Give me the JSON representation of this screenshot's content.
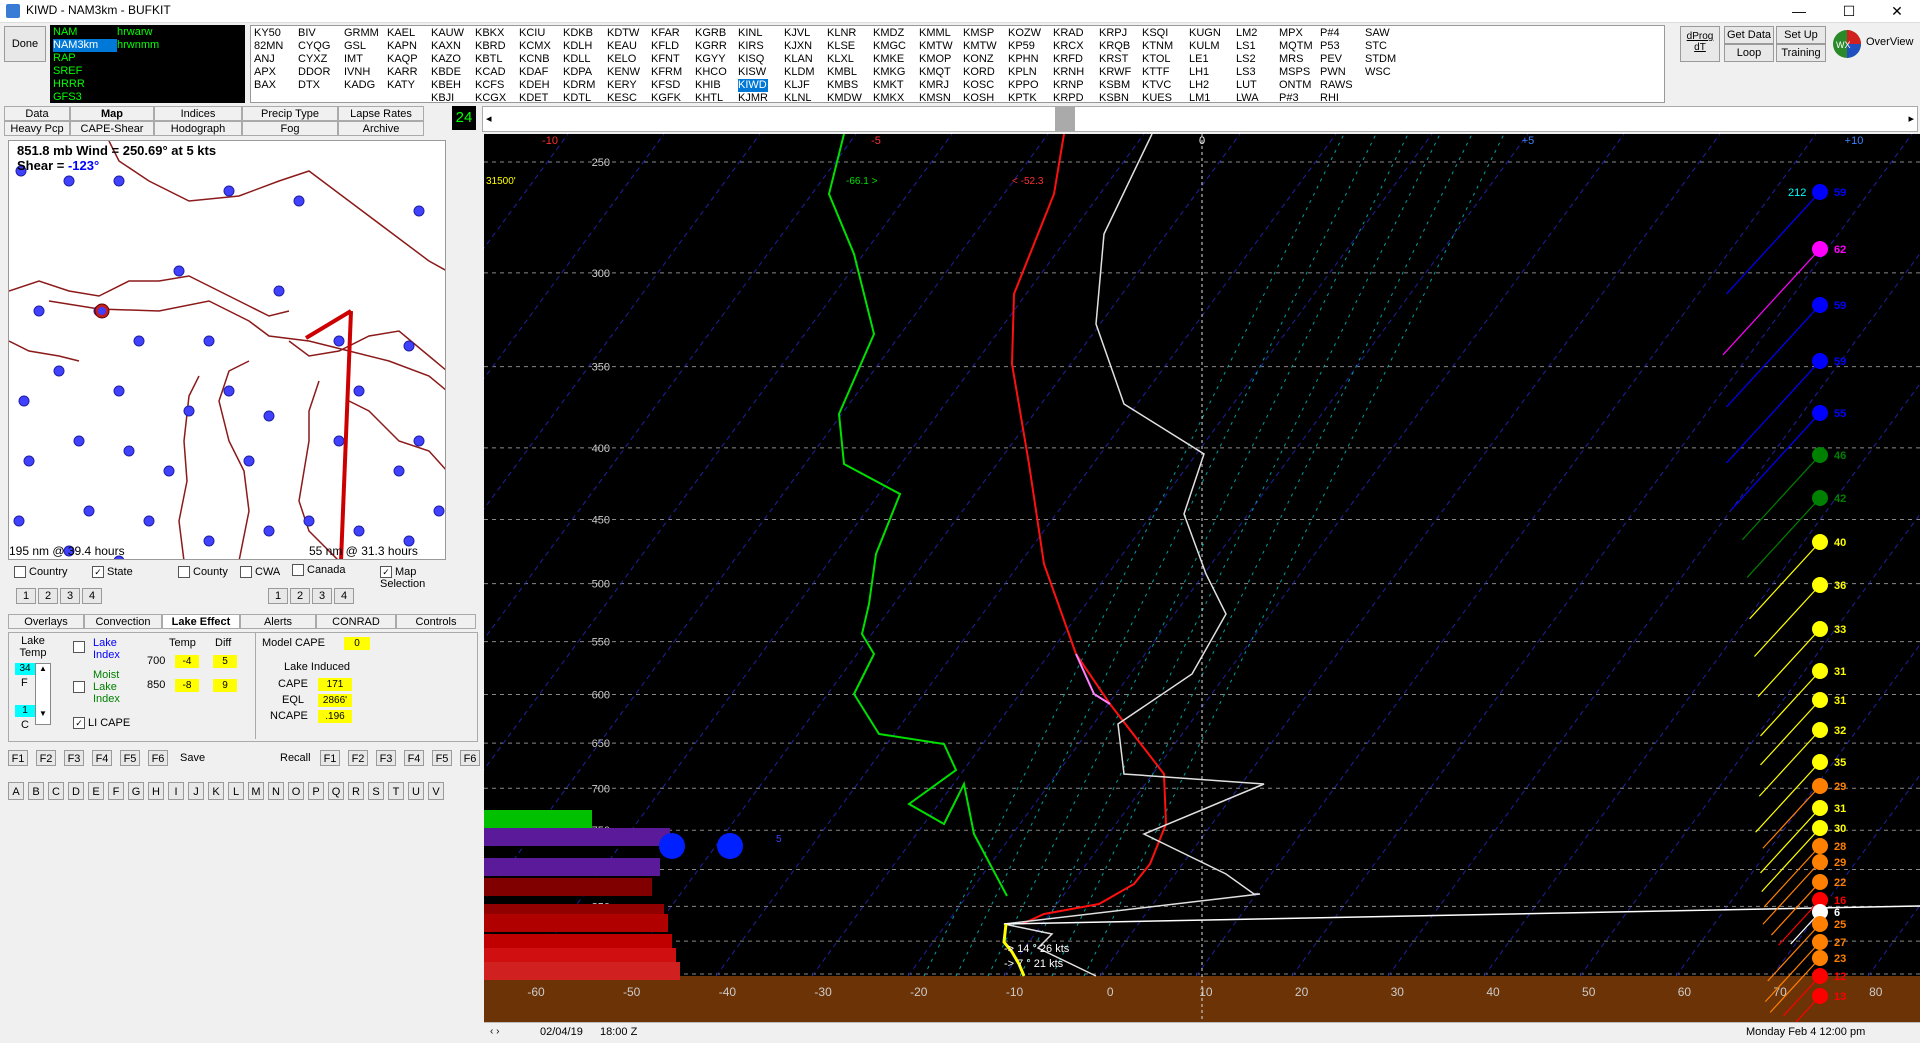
{
  "window": {
    "title": "KIWD - NAM3km - BUFKIT",
    "controls": [
      "—",
      "☐",
      "✕"
    ]
  },
  "toolbar": {
    "done": "Done",
    "hours": "24",
    "dprog": "dProg dT",
    "get_data": "Get Data",
    "loop": "Loop",
    "setup": "Set Up",
    "training": "Training",
    "overview": "OverView"
  },
  "models": [
    {
      "name": "NAM",
      "file": "hrwarw",
      "color": "#00ff00",
      "selected": false
    },
    {
      "name": "NAM3km",
      "file": "hrwnmm",
      "color": "#ffffff",
      "selected": true
    },
    {
      "name": "RAP",
      "file": "",
      "color": "#00ff00",
      "selected": false
    },
    {
      "name": "SREF",
      "file": "",
      "color": "#00ff00",
      "selected": false
    },
    {
      "name": "HRRR",
      "file": "",
      "color": "#00ff00",
      "selected": false
    },
    {
      "name": "GFS3",
      "file": "",
      "color": "#00ff00",
      "selected": false
    }
  ],
  "stations": [
    [
      "KY50",
      "82MN",
      "ANJ",
      "APX",
      "BAX"
    ],
    [
      "BIV",
      "CYQG",
      "CYXZ",
      "DDOR",
      "DTX"
    ],
    [
      "GRMM",
      "GSL",
      "IMT",
      "IVNH",
      "KADG"
    ],
    [
      "KAEL",
      "KAPN",
      "KAQP",
      "KARR",
      "KATY"
    ],
    [
      "KAUW",
      "KAXN",
      "KAZO",
      "KBDE",
      "KBEH",
      "KBJI"
    ],
    [
      "KBKX",
      "KBRD",
      "KBTL",
      "KCAD",
      "KCFS",
      "KCGX"
    ],
    [
      "KCIU",
      "KCMX",
      "KCNB",
      "KDAF",
      "KDEH",
      "KDET"
    ],
    [
      "KDKB",
      "KDLH",
      "KDLL",
      "KDPA",
      "KDRM",
      "KDTL"
    ],
    [
      "KDTW",
      "KEAU",
      "KELO",
      "KENW",
      "KERY",
      "KESC"
    ],
    [
      "KFAR",
      "KFLD",
      "KFNT",
      "KFRM",
      "KFSD",
      "KGFK"
    ],
    [
      "KGRB",
      "KGRR",
      "KGYY",
      "KHCO",
      "KHIB",
      "KHTL"
    ],
    [
      "KINL",
      "KIRS",
      "KISQ",
      "KISW",
      "KIWD",
      "KJMR"
    ],
    [
      "KJVL",
      "KJXN",
      "KLAN",
      "KLDM",
      "KLJF",
      "KLNL"
    ],
    [
      "KLNR",
      "KLSE",
      "KLXL",
      "KMBL",
      "KMBS",
      "KMDW"
    ],
    [
      "KMDZ",
      "KMGC",
      "KMKE",
      "KMKG",
      "KMKT",
      "KMKX"
    ],
    [
      "KMML",
      "KMTW",
      "KMOP",
      "KMQT",
      "KMRJ",
      "KMSN"
    ],
    [
      "KMSP",
      "KMTW",
      "KONZ",
      "KORD",
      "KOSC",
      "KOSH"
    ],
    [
      "KOZW",
      "KP59",
      "KPHN",
      "KPLN",
      "KPPO",
      "KPTK"
    ],
    [
      "KRAD",
      "KRCX",
      "KRFD",
      "KRNH",
      "KRNP",
      "KRPD"
    ],
    [
      "KRPJ",
      "KRQB",
      "KRST",
      "KRWF",
      "KSBM",
      "KSBN"
    ],
    [
      "KSQI",
      "KTNM",
      "KTOL",
      "KTTF",
      "KTVC",
      "KUES"
    ],
    [
      "KUGN",
      "KULM",
      "LE1",
      "LH1",
      "LH2",
      "LM1"
    ],
    [
      "LM2",
      "LS1",
      "LS2",
      "LS3",
      "LUT",
      "LWA"
    ],
    [
      "MPX",
      "MQTM",
      "MRS",
      "MSPS",
      "ONTM",
      "P#3"
    ],
    [
      "P#4",
      "P53",
      "PEV",
      "PWN",
      "RAWS",
      "RHI"
    ],
    [
      "SAW",
      "STC",
      "STDM",
      "WSC"
    ]
  ],
  "selected_station": "KIWD",
  "tabs_row1": [
    "Data",
    "Map",
    "Indices",
    "Precip Type",
    "Lapse Rates"
  ],
  "tabs_row2": [
    "Heavy Pcp",
    "CAPE-Shear",
    "Hodograph",
    "Fog",
    "Archive"
  ],
  "map": {
    "wind_text": "851.8 mb Wind = 250.69° at 5 kts",
    "shear_label": "Shear = ",
    "shear_value": "-123°",
    "left_dist": "195 nm @ 39.4 hours",
    "right_dist": "55 nm @ 31.3 hours"
  },
  "map_options": {
    "country": "Country",
    "state": "State",
    "county": "County",
    "cwa": "CWA",
    "canada": "Canada",
    "map_selection": "Map Selection",
    "nums": [
      "1",
      "2",
      "3",
      "4"
    ]
  },
  "lower_tabs": [
    "Overlays",
    "Convection",
    "Lake Effect",
    "Alerts",
    "CONRAD",
    "Controls"
  ],
  "lake": {
    "lake_temp_label": "Lake Temp",
    "temp_f": "34",
    "f": "F",
    "temp_c": "1",
    "c": "C",
    "lake_index": "Lake Index",
    "moist_lake_index": "Moist Lake Index",
    "li_cape": "LI CAPE",
    "temp_hdr": "Temp",
    "diff_hdr": "Diff",
    "rows": [
      {
        "level": "700",
        "temp": "-4",
        "diff": "5"
      },
      {
        "level": "850",
        "temp": "-8",
        "diff": "9"
      }
    ],
    "model_cape_label": "Model CAPE",
    "model_cape": "0",
    "lake_induced": "Lake Induced",
    "cape_label": "CAPE",
    "cape": "171",
    "eql_label": "EQL",
    "eql": "2866'",
    "ncape_label": "NCAPE",
    "ncape": ".196"
  },
  "fkeys1": [
    "F1",
    "F2",
    "F3",
    "F4",
    "F5",
    "F6"
  ],
  "save": "Save",
  "recall": "Recall",
  "letters": [
    "A",
    "B",
    "C",
    "D",
    "E",
    "F",
    "G",
    "H",
    "I",
    "J",
    "K",
    "L",
    "M",
    "N",
    "O",
    "P",
    "Q",
    "R",
    "S",
    "T",
    "U",
    "V"
  ],
  "skewt": {
    "top_labels": [
      "-10",
      "-5",
      "0",
      "+5",
      "+10"
    ],
    "pressures": [
      "250",
      "300",
      "350",
      "400",
      "450",
      "500",
      "550",
      "600",
      "650",
      "700",
      "750",
      "800",
      "850",
      "900",
      "950"
    ],
    "temps": [
      "-60",
      "-50",
      "-40",
      "-30",
      "-20",
      "-10",
      "0",
      "10",
      "20",
      "30",
      "40",
      "50",
      "60",
      "70",
      "80"
    ],
    "height_label": "31500'",
    "dew_label": "-66.1 >",
    "temp_label": "< -52.3",
    "storm_motion_1": "14 ° 26 kts",
    "storm_motion_2": "7 ° 21 kts",
    "wind_top": "212",
    "wind_speeds": [
      "59",
      "62",
      "59",
      "59",
      "55",
      "46",
      "42",
      "40",
      "36",
      "33",
      "31",
      "31",
      "32",
      "35",
      "29",
      "31",
      "30",
      "28",
      "29",
      "22",
      "16",
      "6",
      "25",
      "27",
      "23",
      "12",
      "13"
    ],
    "wind_colors": [
      "#0000ff",
      "#ff00ff",
      "#0000ff",
      "#0000ff",
      "#0000ff",
      "#008000",
      "#008000",
      "#ffff00",
      "#ffff00",
      "#ffff00",
      "#ffff00",
      "#ffff00",
      "#ffff00",
      "#ffff00",
      "#ff8000",
      "#ffff00",
      "#ffff00",
      "#ff8000",
      "#ff8000",
      "#ff8000",
      "#ff0000",
      "#ffffff",
      "#ff8000",
      "#ff8000",
      "#ff8000",
      "#ff0000",
      "#ff0000"
    ],
    "cloud_marker": "5"
  },
  "status": {
    "date": "02/04/19",
    "time": "18:00 Z",
    "valid": "Monday   Feb 4  12:00 pm"
  }
}
